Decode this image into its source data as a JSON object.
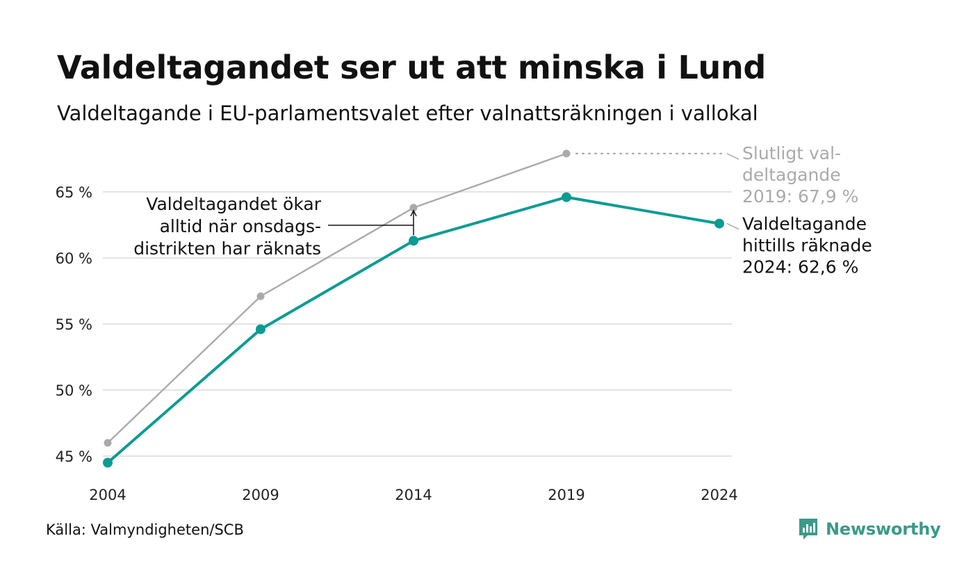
{
  "title": "Valdeltagandet ser ut att minska i Lund",
  "subtitle": "Valdeltagande i EU-parlamentsvalet efter valnattsräkningen i vallokal",
  "source": "Källa: Valmyndigheten/SCB",
  "brand": "Newsworthy",
  "colors": {
    "final": "#aaaaaa",
    "counted": "#0a9c93",
    "grid": "#e3e3e3",
    "brand": "#3a9a8a"
  },
  "chart_data": {
    "type": "line",
    "x": [
      2004,
      2009,
      2014,
      2019,
      2024
    ],
    "series": [
      {
        "key": "final",
        "values": [
          46.0,
          57.1,
          63.8,
          67.9,
          null
        ]
      },
      {
        "key": "counted",
        "values": [
          44.5,
          54.6,
          61.3,
          64.6,
          62.6
        ]
      }
    ],
    "ylim": [
      44.5,
      68.5
    ],
    "yticks": [
      {
        "value": 45,
        "label": "45 %"
      },
      {
        "value": 50,
        "label": "50 %"
      },
      {
        "value": 55,
        "label": "55 %"
      },
      {
        "value": 60,
        "label": "60 %"
      },
      {
        "value": 65,
        "label": "65 %"
      }
    ],
    "xticks": [
      "2004",
      "2009",
      "2014",
      "2019",
      "2024"
    ],
    "grid": true,
    "annotations": {
      "final_end": [
        "Slutligt val-",
        "deltagande",
        "2019: 67,9 %"
      ],
      "counted_end": [
        "Valdeltagande",
        "hittills räknade",
        "2024: 62,6 %"
      ],
      "note": [
        "Valdeltagandet ökar",
        "alltid när onsdags-",
        "distrikten har räknats"
      ]
    }
  }
}
